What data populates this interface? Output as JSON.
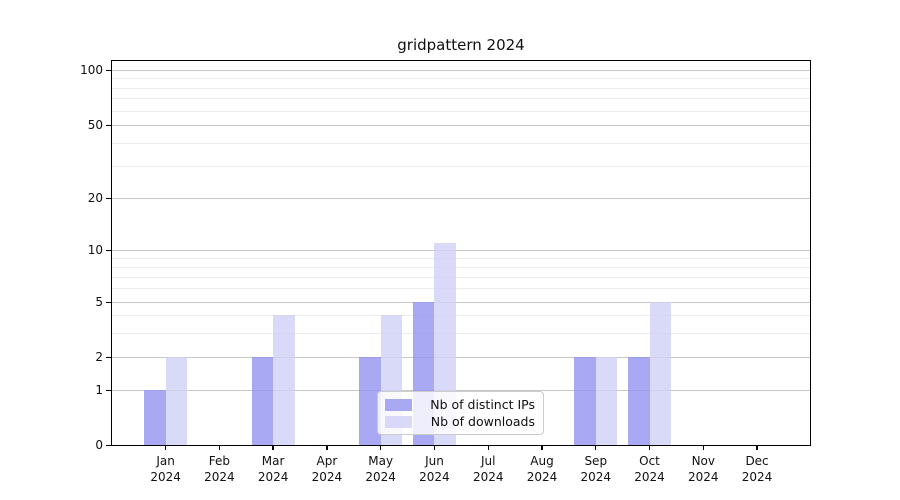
{
  "title": "gridpattern 2024",
  "colors": {
    "bar_distinct_ips": "rgba(147,147,240,0.8)",
    "bar_downloads": "rgba(207,207,246,0.8)",
    "grid_major": "#c9c9c9",
    "grid_minor": "#ececec",
    "axis": "#000000",
    "background": "#ffffff"
  },
  "legend": {
    "items": [
      {
        "label": "Nb of distinct IPs"
      },
      {
        "label": "Nb of downloads"
      }
    ],
    "position": "lower center inside plot"
  },
  "y_axis": {
    "scale": "symlog",
    "major_ticks": [
      0,
      1,
      2,
      5,
      10,
      20,
      50,
      100
    ],
    "minor_gridlines": [
      3,
      4,
      6,
      7,
      8,
      9,
      30,
      40,
      60,
      70,
      80,
      90
    ]
  },
  "x_axis": {
    "months": [
      "Jan",
      "Feb",
      "Mar",
      "Apr",
      "May",
      "Jun",
      "Jul",
      "Aug",
      "Sep",
      "Oct",
      "Nov",
      "Dec"
    ],
    "year": "2024"
  },
  "chart_data": {
    "type": "bar",
    "title": "gridpattern 2024",
    "categories": [
      "Jan 2024",
      "Feb 2024",
      "Mar 2024",
      "Apr 2024",
      "May 2024",
      "Jun 2024",
      "Jul 2024",
      "Aug 2024",
      "Sep 2024",
      "Oct 2024",
      "Nov 2024",
      "Dec 2024"
    ],
    "series": [
      {
        "name": "Nb of distinct IPs",
        "values": [
          1,
          0,
          2,
          0,
          2,
          5,
          0,
          0,
          2,
          2,
          0,
          0
        ]
      },
      {
        "name": "Nb of downloads",
        "values": [
          2,
          0,
          4,
          0,
          4,
          11,
          0,
          0,
          2,
          5,
          0,
          0
        ]
      }
    ],
    "xlabel": "",
    "ylabel": "",
    "ylim": [
      0,
      130
    ],
    "yticks": [
      0,
      1,
      2,
      5,
      10,
      20,
      50,
      100
    ],
    "grid": true,
    "legend_position": "lower center"
  }
}
